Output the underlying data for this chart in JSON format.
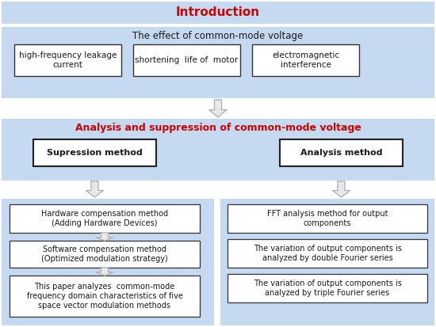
{
  "bg_color": "#ffffff",
  "light_blue": "#c5d9f1",
  "box_bg": "#ffffff",
  "title_color": "#cc0000",
  "text_color": "#1a1a1a",
  "title_text": "Introduction",
  "section1_title": "The effect of common-mode voltage",
  "section1_boxes": [
    "high-frequency leakage\ncurrent",
    "shortening  life of  motor",
    "electromagnetic\ninterference"
  ],
  "section2_title": "Analysis and suppression of common-mode voltage",
  "left_header": "Supression method",
  "right_header": "Analysis method",
  "left_boxes": [
    "Hardware compensation method\n(Adding Hardware Devices)",
    "Software compensation method\n(Optimized modulation strategy)",
    "This paper analyzes  common-mode\nfrequency domain characteristics of five\nspace vector modulation methods"
  ],
  "right_boxes": [
    "FFT analysis method for output\ncomponents",
    "The variation of output components is\nanalyzed by double Fourier series",
    "The variation of output components is\nanalyzed by triple Fourier series"
  ]
}
